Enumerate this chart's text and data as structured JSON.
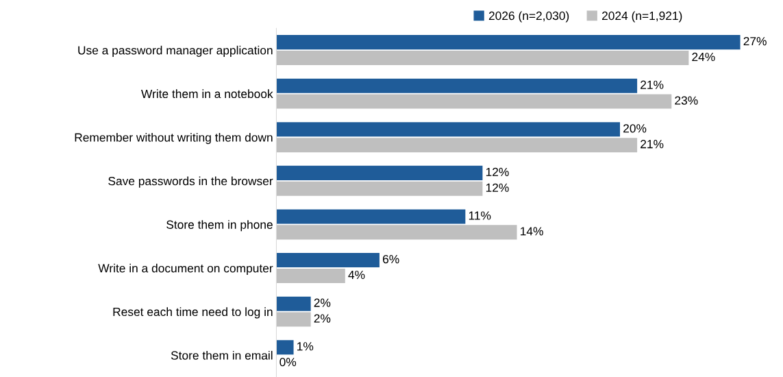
{
  "chart_data": {
    "type": "bar",
    "orientation": "horizontal",
    "categories": [
      "Use a password manager application",
      "Write them in a notebook",
      "Remember without writing them down",
      "Save passwords in the browser",
      "Store them in phone",
      "Write in a document on computer",
      "Reset each time need to log in",
      "Store them in email"
    ],
    "series": [
      {
        "name": "2026 (n=2,030)",
        "color": "#1f5c99",
        "values": [
          27,
          21,
          20,
          12,
          11,
          6,
          2,
          1
        ],
        "value_labels": [
          "27%",
          "21%",
          "20%",
          "12%",
          "11%",
          "6%",
          "2%",
          "1%"
        ]
      },
      {
        "name": "2024 (n=1,921)",
        "color": "#bfbfbf",
        "values": [
          24,
          23,
          21,
          12,
          14,
          4,
          2,
          0
        ],
        "value_labels": [
          "24%",
          "23%",
          "21%",
          "12%",
          "14%",
          "4%",
          "2%",
          "0%"
        ]
      }
    ],
    "tick_labels": "y",
    "grid": false,
    "legend": "top"
  }
}
